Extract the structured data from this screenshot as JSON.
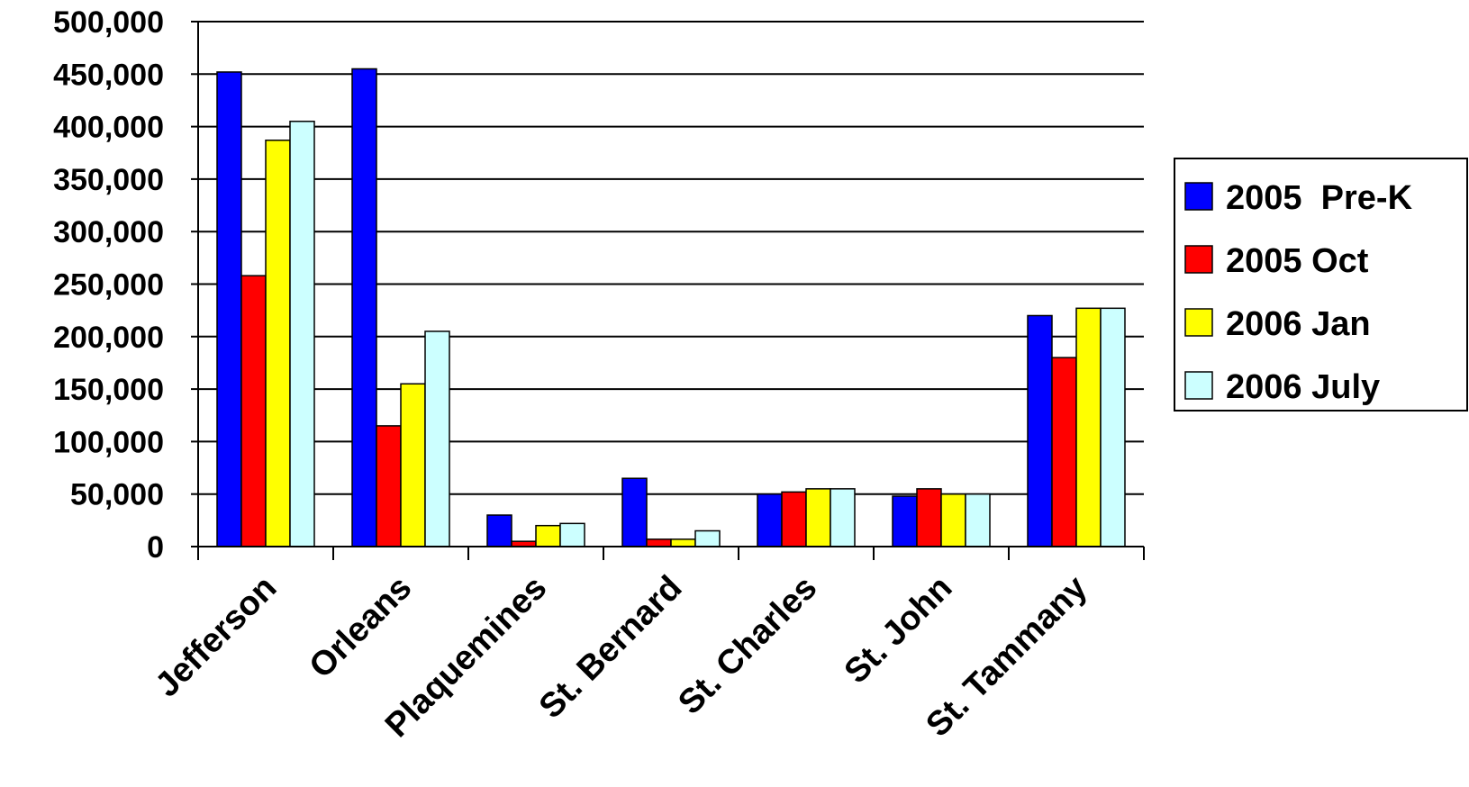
{
  "chart_data": {
    "type": "bar",
    "categories": [
      "Jefferson",
      "Orleans",
      "Plaquemines",
      "St. Bernard",
      "St. Charles",
      "St. John",
      "St. Tammany"
    ],
    "series": [
      {
        "name": "2005  Pre-K",
        "color": "#0000ff",
        "values": [
          452000,
          455000,
          30000,
          65000,
          50000,
          48000,
          220000
        ]
      },
      {
        "name": "2005 Oct",
        "color": "#ff0000",
        "values": [
          258000,
          115000,
          5000,
          7000,
          52000,
          55000,
          180000
        ]
      },
      {
        "name": "2006 Jan",
        "color": "#ffff00",
        "values": [
          387000,
          155000,
          20000,
          7000,
          55000,
          50000,
          227000
        ]
      },
      {
        "name": "2006 July",
        "color": "#ccffff",
        "values": [
          405000,
          205000,
          22000,
          15000,
          55000,
          50000,
          227000
        ]
      }
    ],
    "ylim": [
      0,
      500000
    ],
    "y_ticks": [
      "0",
      "50,000",
      "100,000",
      "150,000",
      "200,000",
      "250,000",
      "300,000",
      "350,000",
      "400,000",
      "450,000",
      "500,000"
    ],
    "grid": true,
    "legend_position": "right",
    "title": "",
    "xlabel": "",
    "ylabel": ""
  }
}
